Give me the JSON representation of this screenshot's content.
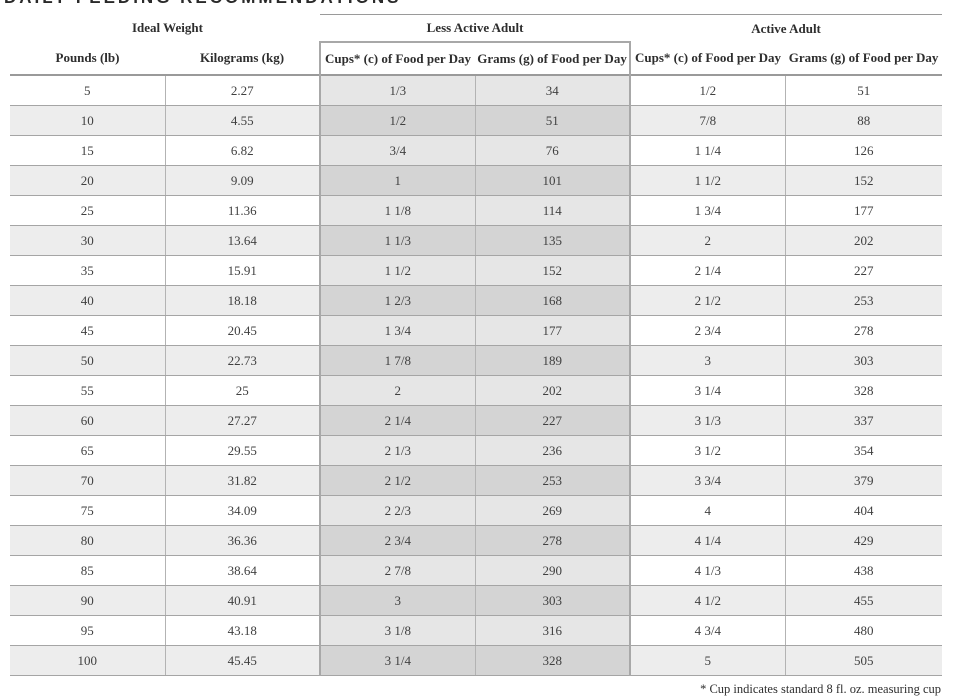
{
  "page_title": "DAILY FEEDING RECOMMENDATIONS",
  "header": {
    "group_ideal_weight": "Ideal Weight",
    "group_less_active": "Less Active Adult",
    "group_active": "Active Adult",
    "col_pounds": "Pounds (lb)",
    "col_kilograms": "Kilograms (kg)",
    "col_less_cups": "Cups* (c) of Food per Day",
    "col_less_grams": "Grams (g) of Food per Day",
    "col_active_cups": "Cups* (c) of Food per Day",
    "col_active_grams": "Grams (g) of Food per Day"
  },
  "rows": [
    [
      "5",
      "2.27",
      "1/3",
      "34",
      "1/2",
      "51"
    ],
    [
      "10",
      "4.55",
      "1/2",
      "51",
      "7/8",
      "88"
    ],
    [
      "15",
      "6.82",
      "3/4",
      "76",
      "1 1/4",
      "126"
    ],
    [
      "20",
      "9.09",
      "1",
      "101",
      "1 1/2",
      "152"
    ],
    [
      "25",
      "11.36",
      "1 1/8",
      "114",
      "1 3/4",
      "177"
    ],
    [
      "30",
      "13.64",
      "1 1/3",
      "135",
      "2",
      "202"
    ],
    [
      "35",
      "15.91",
      "1 1/2",
      "152",
      "2 1/4",
      "227"
    ],
    [
      "40",
      "18.18",
      "1 2/3",
      "168",
      "2 1/2",
      "253"
    ],
    [
      "45",
      "20.45",
      "1 3/4",
      "177",
      "2 3/4",
      "278"
    ],
    [
      "50",
      "22.73",
      "1 7/8",
      "189",
      "3",
      "303"
    ],
    [
      "55",
      "25",
      "2",
      "202",
      "3 1/4",
      "328"
    ],
    [
      "60",
      "27.27",
      "2 1/4",
      "227",
      "3 1/3",
      "337"
    ],
    [
      "65",
      "29.55",
      "2 1/3",
      "236",
      "3 1/2",
      "354"
    ],
    [
      "70",
      "31.82",
      "2 1/2",
      "253",
      "3 3/4",
      "379"
    ],
    [
      "75",
      "34.09",
      "2 2/3",
      "269",
      "4",
      "404"
    ],
    [
      "80",
      "36.36",
      "2 3/4",
      "278",
      "4 1/4",
      "429"
    ],
    [
      "85",
      "38.64",
      "2 7/8",
      "290",
      "4 1/3",
      "438"
    ],
    [
      "90",
      "40.91",
      "3",
      "303",
      "4 1/2",
      "455"
    ],
    [
      "95",
      "43.18",
      "3 1/8",
      "316",
      "4 3/4",
      "480"
    ],
    [
      "100",
      "45.45",
      "3 1/4",
      "328",
      "5",
      "505"
    ]
  ],
  "footnote": "* Cup indicates standard 8 fl. oz. measuring cup",
  "colors": {
    "row_stripe": "#ededed",
    "highlight_column_odd": "#e6e6e6",
    "highlight_column_even": "#d4d4d4",
    "rule": "#a5a5a5"
  }
}
